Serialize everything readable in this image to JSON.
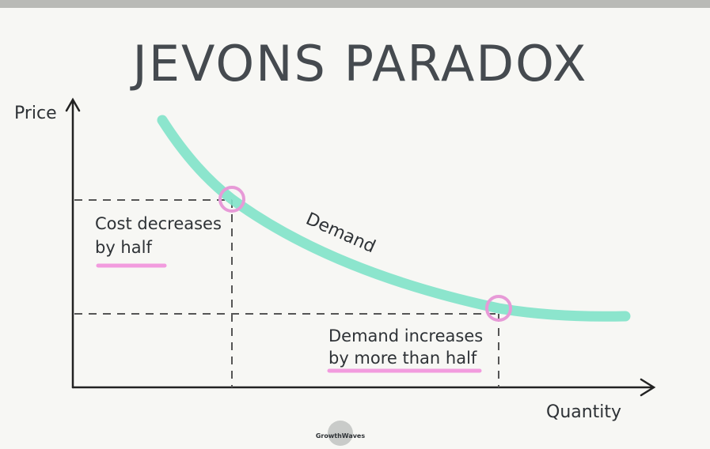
{
  "title": "JEVONS PARADOX",
  "axes": {
    "y_label": "Price",
    "x_label": "Quantity"
  },
  "curve": {
    "label": "Demand"
  },
  "annotations": {
    "cost": [
      "Cost decreases",
      "by half"
    ],
    "demand": [
      "Demand increases",
      "by more than half"
    ]
  },
  "logo": {
    "text": "GrowthWaves"
  }
}
